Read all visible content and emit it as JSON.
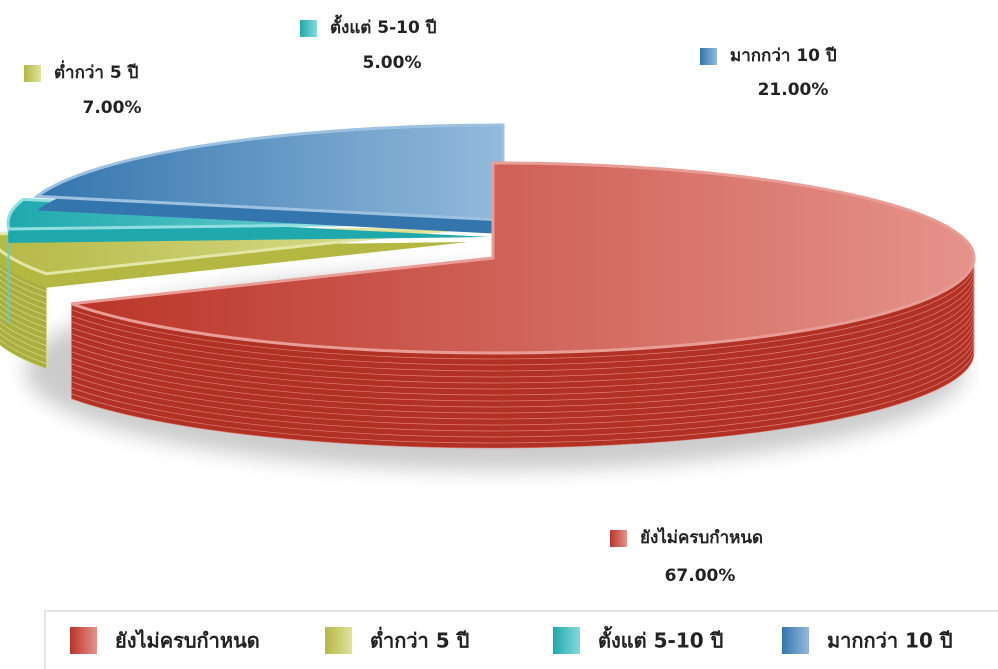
{
  "chart_data": {
    "type": "pie",
    "categories": [
      "ยังไม่ครบกำหนด",
      "ต่ำกว่า 5 ปี",
      "ตั้งแต่ 5-10 ปี",
      "มากกว่า 10 ปี"
    ],
    "values": [
      67,
      7,
      5,
      21
    ],
    "value_labels": [
      "67.00%",
      "7.00%",
      "5.00%",
      "21.00%"
    ],
    "colors": [
      "#d03a2c",
      "#c8cc4a",
      "#22bcc0",
      "#3a82c0"
    ],
    "legend": "bottom"
  }
}
